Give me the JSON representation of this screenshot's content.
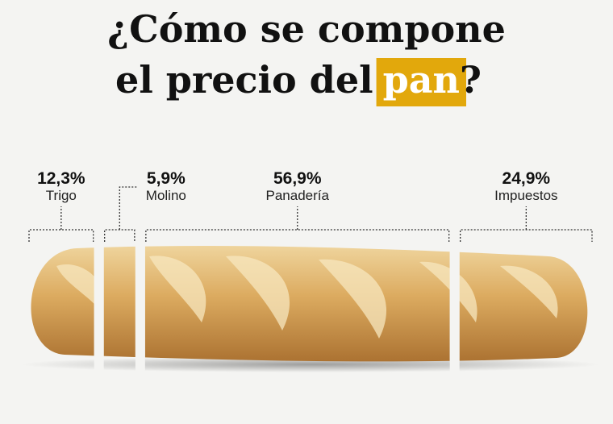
{
  "chart_data": {
    "type": "bar",
    "orientation": "horizontal",
    "stacked": true,
    "title": {
      "line1": "¿Cómo se compone",
      "line2": "el precio del",
      "highlight": "pan",
      "end": "?"
    },
    "highlight_color": "#e2a80c",
    "categories": [
      "Trigo",
      "Molino",
      "Panadería",
      "Impuestos"
    ],
    "values": [
      12.3,
      5.9,
      56.9,
      24.9
    ],
    "value_labels": [
      "12,3%",
      "5,9%",
      "56,9%",
      "24,9%"
    ]
  }
}
